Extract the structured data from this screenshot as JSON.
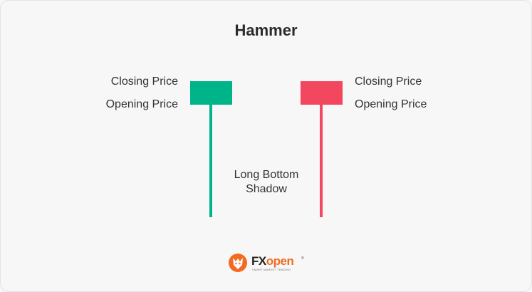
{
  "title": "Hammer",
  "labels": {
    "left_closing": "Closing Price",
    "left_opening": "Opening Price",
    "right_closing": "Closing Price",
    "right_opening": "Opening Price",
    "shadow_line1": "Long Bottom",
    "shadow_line2": "Shadow"
  },
  "candles": [
    {
      "name": "bullish-hammer",
      "color": "#00b48a"
    },
    {
      "name": "bearish-hammer",
      "color": "#f2475f"
    }
  ],
  "logo": {
    "brand_fx": "FX",
    "brand_open": "open",
    "tagline": "SMART MARKET TRADING",
    "icon": "fox-head-icon",
    "accent": "#f26b21"
  }
}
